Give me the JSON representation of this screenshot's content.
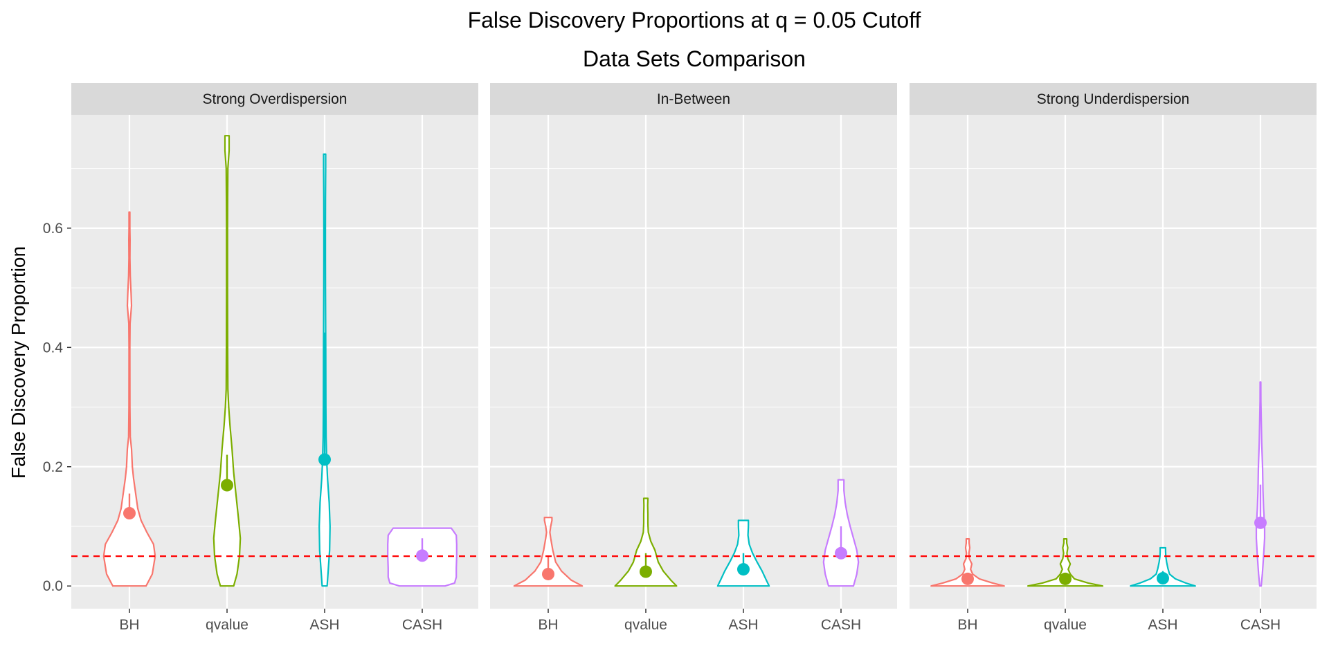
{
  "chart_data": {
    "type": "violin",
    "title": "False Discovery Proportions at q = 0.05 Cutoff",
    "subtitle": "Data Sets Comparison",
    "ylabel": "False Discovery Proportion",
    "xlabel": "",
    "ylim": [
      -0.038,
      0.79
    ],
    "yticks": [
      0.0,
      0.2,
      0.4,
      0.6
    ],
    "ytick_labels": [
      "0.0",
      "0.2",
      "0.4",
      "0.6"
    ],
    "reference_line": {
      "value": 0.05,
      "color": "#ff0000",
      "style": "dashed"
    },
    "grid": true,
    "categories": [
      "BH",
      "qvalue",
      "ASH",
      "CASH"
    ],
    "series_colors": {
      "BH": "#F8766D",
      "qvalue": "#7CAE00",
      "ASH": "#00BFC4",
      "CASH": "#C77CFF"
    },
    "panels": [
      {
        "label": "Strong Overdispersion",
        "methods": [
          {
            "name": "BH",
            "max": 0.627,
            "mean": 0.122,
            "line_low": 0.122,
            "line_high": 0.155,
            "profile": [
              [
                0.0,
                0.4
              ],
              [
                0.02,
                0.55
              ],
              [
                0.05,
                0.62
              ],
              [
                0.07,
                0.58
              ],
              [
                0.09,
                0.42
              ],
              [
                0.11,
                0.28
              ],
              [
                0.13,
                0.2
              ],
              [
                0.15,
                0.16
              ],
              [
                0.18,
                0.1
              ],
              [
                0.2,
                0.07
              ],
              [
                0.23,
                0.05
              ],
              [
                0.25,
                0.02
              ],
              [
                0.3,
                0.012
              ],
              [
                0.4,
                0.01
              ],
              [
                0.44,
                0.015
              ],
              [
                0.47,
                0.05
              ],
              [
                0.49,
                0.04
              ],
              [
                0.52,
                0.02
              ],
              [
                0.55,
                0.012
              ],
              [
                0.58,
                0.015
              ],
              [
                0.6,
                0.01
              ],
              [
                0.627,
                0.01
              ]
            ]
          },
          {
            "name": "qvalue",
            "max": 0.755,
            "mean": 0.169,
            "line_low": 0.169,
            "line_high": 0.22,
            "profile": [
              [
                0.0,
                0.16
              ],
              [
                0.02,
                0.24
              ],
              [
                0.05,
                0.3
              ],
              [
                0.08,
                0.32
              ],
              [
                0.11,
                0.28
              ],
              [
                0.15,
                0.22
              ],
              [
                0.19,
                0.16
              ],
              [
                0.23,
                0.12
              ],
              [
                0.27,
                0.07
              ],
              [
                0.3,
                0.04
              ],
              [
                0.33,
                0.02
              ],
              [
                0.4,
                0.015
              ],
              [
                0.5,
                0.012
              ],
              [
                0.6,
                0.012
              ],
              [
                0.65,
                0.015
              ],
              [
                0.7,
                0.02
              ],
              [
                0.73,
                0.05
              ],
              [
                0.755,
                0.05
              ]
            ]
          },
          {
            "name": "ASH",
            "max": 0.724,
            "mean": 0.212,
            "line_low": 0.212,
            "line_high": 0.425,
            "profile": [
              [
                0.0,
                0.06
              ],
              [
                0.03,
                0.09
              ],
              [
                0.06,
                0.12
              ],
              [
                0.1,
                0.13
              ],
              [
                0.14,
                0.11
              ],
              [
                0.18,
                0.07
              ],
              [
                0.21,
                0.05
              ],
              [
                0.25,
                0.035
              ],
              [
                0.3,
                0.03
              ],
              [
                0.35,
                0.028
              ],
              [
                0.4,
                0.026
              ],
              [
                0.45,
                0.024
              ],
              [
                0.5,
                0.02
              ],
              [
                0.55,
                0.018
              ],
              [
                0.6,
                0.018
              ],
              [
                0.65,
                0.02
              ],
              [
                0.7,
                0.025
              ],
              [
                0.724,
                0.025
              ]
            ]
          },
          {
            "name": "CASH",
            "max": 0.097,
            "mean": 0.051,
            "line_low": 0.051,
            "line_high": 0.08,
            "profile": [
              [
                0.0,
                0.55
              ],
              [
                0.005,
                0.78
              ],
              [
                0.015,
                0.82
              ],
              [
                0.03,
                0.82
              ],
              [
                0.05,
                0.83
              ],
              [
                0.07,
                0.83
              ],
              [
                0.085,
                0.82
              ],
              [
                0.092,
                0.75
              ],
              [
                0.097,
                0.7
              ]
            ]
          }
        ]
      },
      {
        "label": "In-Between",
        "methods": [
          {
            "name": "BH",
            "max": 0.115,
            "mean": 0.02,
            "line_low": 0.02,
            "line_high": 0.05,
            "profile": [
              [
                0.0,
                0.82
              ],
              [
                0.01,
                0.55
              ],
              [
                0.025,
                0.32
              ],
              [
                0.04,
                0.18
              ],
              [
                0.06,
                0.11
              ],
              [
                0.08,
                0.06
              ],
              [
                0.09,
                0.04
              ],
              [
                0.1,
                0.06
              ],
              [
                0.11,
                0.09
              ],
              [
                0.115,
                0.09
              ]
            ]
          },
          {
            "name": "qvalue",
            "max": 0.147,
            "mean": 0.024,
            "line_low": 0.024,
            "line_high": 0.055,
            "profile": [
              [
                0.0,
                0.74
              ],
              [
                0.01,
                0.6
              ],
              [
                0.025,
                0.42
              ],
              [
                0.04,
                0.3
              ],
              [
                0.06,
                0.22
              ],
              [
                0.075,
                0.12
              ],
              [
                0.09,
                0.06
              ],
              [
                0.105,
                0.05
              ],
              [
                0.12,
                0.05
              ],
              [
                0.135,
                0.045
              ],
              [
                0.147,
                0.05
              ]
            ]
          },
          {
            "name": "ASH",
            "max": 0.11,
            "mean": 0.028,
            "line_low": 0.028,
            "line_high": 0.055,
            "profile": [
              [
                0.0,
                0.62
              ],
              [
                0.01,
                0.55
              ],
              [
                0.025,
                0.45
              ],
              [
                0.04,
                0.33
              ],
              [
                0.055,
                0.22
              ],
              [
                0.07,
                0.14
              ],
              [
                0.085,
                0.11
              ],
              [
                0.1,
                0.12
              ],
              [
                0.11,
                0.12
              ]
            ]
          },
          {
            "name": "CASH",
            "max": 0.178,
            "mean": 0.055,
            "line_low": 0.055,
            "line_high": 0.1,
            "profile": [
              [
                0.0,
                0.3
              ],
              [
                0.02,
                0.38
              ],
              [
                0.04,
                0.42
              ],
              [
                0.06,
                0.38
              ],
              [
                0.08,
                0.3
              ],
              [
                0.1,
                0.22
              ],
              [
                0.12,
                0.15
              ],
              [
                0.14,
                0.1
              ],
              [
                0.16,
                0.07
              ],
              [
                0.178,
                0.07
              ]
            ]
          }
        ]
      },
      {
        "label": "Strong Underdispersion",
        "methods": [
          {
            "name": "BH",
            "max": 0.079,
            "mean": 0.012,
            "line_low": 0.012,
            "line_high": 0.02,
            "profile": [
              [
                0.0,
                0.88
              ],
              [
                0.005,
                0.6
              ],
              [
                0.012,
                0.28
              ],
              [
                0.02,
                0.12
              ],
              [
                0.028,
                0.07
              ],
              [
                0.037,
                0.1
              ],
              [
                0.046,
                0.04
              ],
              [
                0.055,
                0.03
              ],
              [
                0.064,
                0.05
              ],
              [
                0.072,
                0.035
              ],
              [
                0.079,
                0.035
              ]
            ]
          },
          {
            "name": "qvalue",
            "max": 0.079,
            "mean": 0.012,
            "line_low": 0.012,
            "line_high": 0.02,
            "profile": [
              [
                0.0,
                0.9
              ],
              [
                0.005,
                0.55
              ],
              [
                0.012,
                0.22
              ],
              [
                0.02,
                0.12
              ],
              [
                0.028,
                0.07
              ],
              [
                0.037,
                0.12
              ],
              [
                0.046,
                0.06
              ],
              [
                0.055,
                0.04
              ],
              [
                0.064,
                0.06
              ],
              [
                0.072,
                0.035
              ],
              [
                0.079,
                0.035
              ]
            ]
          },
          {
            "name": "ASH",
            "max": 0.064,
            "mean": 0.013,
            "line_low": 0.013,
            "line_high": 0.025,
            "profile": [
              [
                0.0,
                0.78
              ],
              [
                0.005,
                0.55
              ],
              [
                0.012,
                0.3
              ],
              [
                0.02,
                0.16
              ],
              [
                0.03,
                0.12
              ],
              [
                0.04,
                0.09
              ],
              [
                0.05,
                0.07
              ],
              [
                0.058,
                0.065
              ],
              [
                0.064,
                0.065
              ]
            ]
          },
          {
            "name": "CASH",
            "max": 0.342,
            "mean": 0.106,
            "line_low": 0.106,
            "line_high": 0.17,
            "profile": [
              [
                0.0,
                0.018
              ],
              [
                0.02,
                0.045
              ],
              [
                0.05,
                0.075
              ],
              [
                0.08,
                0.1
              ],
              [
                0.1,
                0.1
              ],
              [
                0.13,
                0.075
              ],
              [
                0.16,
                0.06
              ],
              [
                0.2,
                0.05
              ],
              [
                0.24,
                0.03
              ],
              [
                0.28,
                0.018
              ],
              [
                0.31,
                0.01
              ],
              [
                0.342,
                0.008
              ]
            ]
          }
        ]
      }
    ]
  }
}
